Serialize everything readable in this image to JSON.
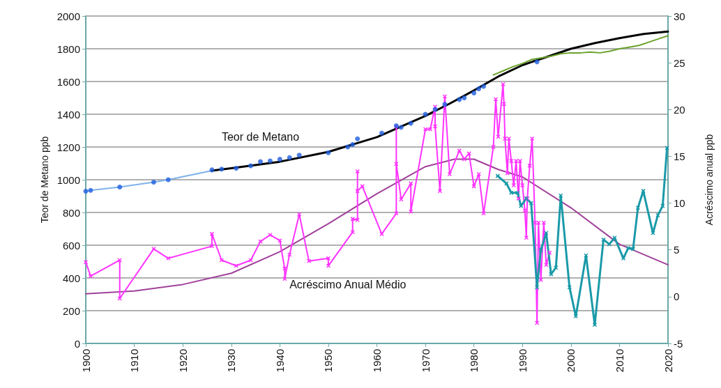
{
  "chart_data": {
    "type": "line",
    "ylabel": "Teor de Metano ppb",
    "y2label": "Acréscimo anual ppb",
    "xlim": [
      1900,
      2020
    ],
    "xticks": [
      1900,
      1910,
      1920,
      1930,
      1940,
      1950,
      1960,
      1970,
      1980,
      1990,
      2000,
      2010,
      2020
    ],
    "ylim": [
      0,
      2000
    ],
    "yticks": [
      0,
      200,
      400,
      600,
      800,
      1000,
      1200,
      1400,
      1600,
      1800,
      2000
    ],
    "y2lim": [
      -5,
      30
    ],
    "y2ticks": [
      -5,
      0,
      5,
      10,
      15,
      20,
      25,
      30
    ],
    "grid": "y",
    "annotations": [
      "Teor de Metano",
      "Acréscimo Anual Médio"
    ],
    "series": [
      {
        "type": "line",
        "color": "#7fb2ea",
        "marker": "none",
        "x": [
          1900,
          1901,
          1907,
          1914,
          1917,
          1926
        ],
        "values": [
          930,
          935,
          955,
          985,
          1000,
          1055
        ]
      },
      {
        "type": "line",
        "color": "#000000",
        "marker": "none",
        "x": [
          1926,
          1930,
          1940,
          1950,
          1960,
          1970,
          1975,
          1980,
          1985,
          1990,
          1995,
          2000,
          2005,
          2010,
          2015,
          2020
        ],
        "values": [
          1055,
          1070,
          1110,
          1170,
          1260,
          1390,
          1465,
          1545,
          1630,
          1700,
          1750,
          1800,
          1835,
          1865,
          1890,
          1905
        ]
      },
      {
        "type": "scatter",
        "color": "#1f5fe0",
        "marker": "circle",
        "x": [
          1900,
          1901,
          1907,
          1914,
          1917,
          1926,
          1928,
          1931,
          1934,
          1936,
          1938,
          1940,
          1942,
          1944,
          1950,
          1954,
          1955,
          1956,
          1961,
          1964,
          1965,
          1967,
          1970,
          1972,
          1974,
          1977,
          1978,
          1980,
          1981,
          1982,
          1993
        ],
        "values": [
          930,
          935,
          955,
          985,
          1000,
          1060,
          1065,
          1070,
          1085,
          1110,
          1115,
          1125,
          1135,
          1150,
          1165,
          1200,
          1215,
          1250,
          1285,
          1330,
          1320,
          1345,
          1400,
          1430,
          1460,
          1490,
          1500,
          1530,
          1555,
          1570,
          1720
        ]
      },
      {
        "type": "line",
        "color": "#6aa22a",
        "marker": "none",
        "x": [
          1984,
          1986,
          1988,
          1990,
          1992,
          1994,
          1996,
          1998,
          2000,
          2002,
          2004,
          2006,
          2008,
          2010,
          2012,
          2014,
          2016,
          2018,
          2020
        ],
        "values": [
          1640,
          1665,
          1690,
          1710,
          1735,
          1745,
          1755,
          1770,
          1775,
          1775,
          1780,
          1775,
          1785,
          1800,
          1810,
          1820,
          1840,
          1860,
          1880
        ]
      },
      {
        "type": "line",
        "axis": "y2",
        "color": "#a0409a",
        "marker": "none",
        "x": [
          1900,
          1910,
          1920,
          1930,
          1940,
          1950,
          1960,
          1970,
          1976,
          1980,
          1985,
          1990,
          2000,
          2010,
          2020
        ],
        "values": [
          0.3,
          0.6,
          1.3,
          2.5,
          4.8,
          7.8,
          11.0,
          13.9,
          14.7,
          14.7,
          13.6,
          12.8,
          9.5,
          5.6,
          3.4
        ]
      },
      {
        "type": "line",
        "axis": "y2",
        "color": "#ff33ff",
        "marker": "cross",
        "x": [
          1900,
          1901,
          1907,
          1907,
          1914,
          1917,
          1926,
          1926,
          1928,
          1931,
          1934,
          1936,
          1938,
          1940,
          1941,
          1941,
          1942,
          1944,
          1946,
          1950,
          1950,
          1955,
          1955,
          1956,
          1956,
          1956,
          1957,
          1961,
          1964,
          1964,
          1964,
          1965,
          1967,
          1967,
          1970,
          1971,
          1972,
          1972,
          1973,
          1974,
          1975,
          1977,
          1978,
          1979,
          1980,
          1981,
          1982,
          1984,
          1984.5,
          1985,
          1986,
          1986.2,
          1986.4,
          1986.9,
          1987.2,
          1987.7,
          1988.2,
          1988.7,
          1989.2,
          1989.5,
          1990,
          1990.5,
          1990.8,
          1991,
          1991.5,
          1992,
          1992.6,
          1993,
          1993.3,
          1993.8,
          1994.4,
          1994.9,
          1995.6
        ],
        "values": [
          3.7,
          2.2,
          3.9,
          -0.2,
          5.1,
          4.1,
          5.4,
          6.7,
          3.9,
          3.3,
          3.9,
          5.9,
          6.6,
          6.0,
          3.0,
          1.9,
          4.5,
          8.8,
          3.8,
          4.1,
          3.3,
          6.9,
          8.3,
          8.2,
          13.4,
          11.3,
          11.8,
          6.7,
          8.9,
          18.2,
          14.2,
          10.4,
          12.1,
          9.1,
          17.9,
          17.9,
          20.3,
          18.2,
          11.3,
          21.4,
          13.1,
          15.6,
          14.7,
          15.3,
          11.8,
          13.1,
          8.9,
          16.0,
          21.1,
          17.1,
          22.7,
          20.6,
          16.9,
          13.2,
          16.9,
          14.5,
          11.9,
          14.5,
          10.5,
          14.5,
          11.9,
          9.2,
          6.3,
          10.5,
          14.0,
          16.9,
          7.9,
          -2.8,
          7.9,
          1.8,
          7.9,
          3.4,
          4.7
        ]
      },
      {
        "type": "line",
        "axis": "y2",
        "color": "#1a9aa8",
        "marker": "cross",
        "x": [
          1984.9,
          1986.7,
          1987.7,
          1989,
          1989.7,
          1990.8,
          1991.8,
          1993,
          1993.8,
          1994.9,
          1995.9,
          1996.9,
          1997.9,
          1999.7,
          2001,
          2003.1,
          2004.9,
          2006.7,
          2007.9,
          2009,
          2010.8,
          2011.8,
          2012.8,
          2013.8,
          2014.9,
          2016.9,
          2017.9,
          2018.9,
          2019.8
        ],
        "values": [
          12.9,
          12.1,
          11.1,
          11.1,
          9.7,
          10.5,
          10.0,
          1.0,
          5.0,
          6.8,
          2.4,
          3.1,
          10.8,
          1.0,
          -2.1,
          4.4,
          -3.0,
          6.1,
          5.6,
          6.3,
          4.1,
          5.2,
          5.1,
          9.5,
          11.3,
          6.8,
          8.7,
          9.7,
          15.9
        ]
      }
    ]
  }
}
